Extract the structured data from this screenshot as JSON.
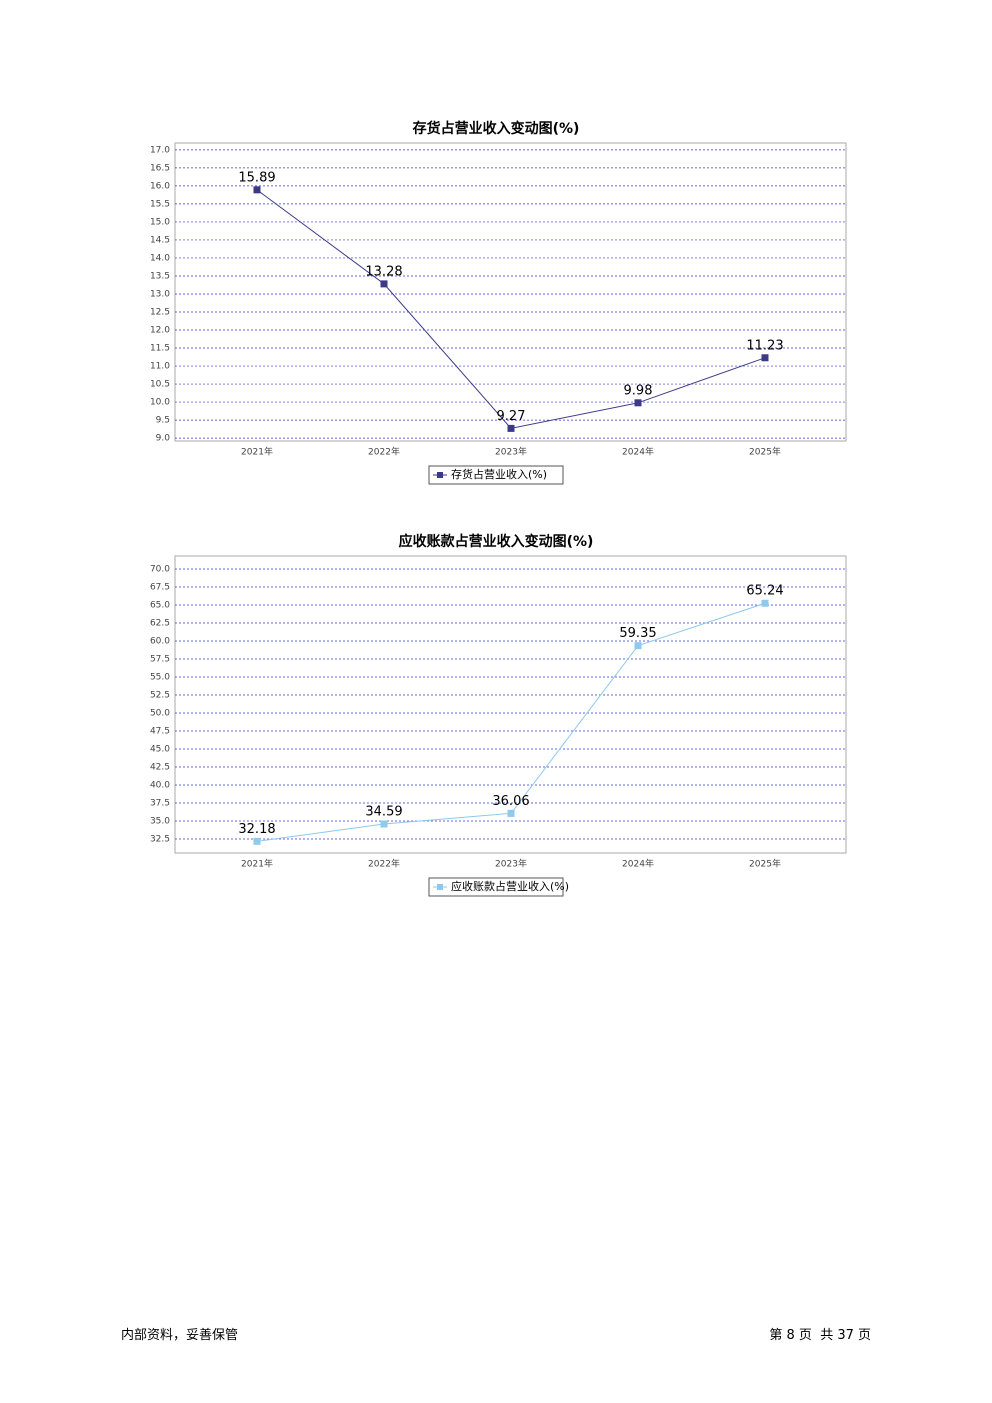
{
  "chart_data": [
    {
      "type": "line",
      "title": "存货占营业收入变动图(%)",
      "categories": [
        "2021年",
        "2022年",
        "2023年",
        "2024年",
        "2025年"
      ],
      "series": [
        {
          "name": "存货占营业收入(%)",
          "color": "#3d3a85",
          "values": [
            15.89,
            13.28,
            9.27,
            9.98,
            11.23
          ]
        }
      ],
      "ylim": [
        8.92,
        17.19
      ],
      "yticks": [
        {
          "value": 9,
          "label": "9.0"
        },
        9.5,
        {
          "value": 10,
          "label": "10.0"
        },
        10.5,
        {
          "value": 11,
          "label": "11.0"
        },
        11.5,
        {
          "value": 12,
          "label": "12.0"
        },
        12.5,
        {
          "value": 13,
          "label": "13.0"
        },
        13.5,
        {
          "value": 14,
          "label": "14.0"
        },
        14.5,
        {
          "value": 15,
          "label": "15.0"
        },
        15.5,
        {
          "value": 16,
          "label": "16.0"
        },
        16.5,
        {
          "value": 17,
          "label": "17.0"
        }
      ],
      "grid": true,
      "legend": "bottom"
    },
    {
      "type": "line",
      "title": "应收账款占营业收入变动图(%)",
      "categories": [
        "2021年",
        "2022年",
        "2023年",
        "2024年",
        "2025年"
      ],
      "series": [
        {
          "name": "应收账款占营业收入(%)",
          "color": "#8ec9ee",
          "values": [
            32.18,
            34.59,
            36.06,
            59.35,
            65.24
          ]
        }
      ],
      "ylim": [
        30.56,
        71.8
      ],
      "yticks": [
        32.5,
        {
          "value": 35,
          "label": "35.0"
        },
        37.5,
        {
          "value": 40,
          "label": "40.0"
        },
        42.5,
        {
          "value": 45,
          "label": "45.0"
        },
        47.5,
        {
          "value": 50,
          "label": "50.0"
        },
        52.5,
        {
          "value": 55,
          "label": "55.0"
        },
        57.5,
        {
          "value": 60,
          "label": "60.0"
        },
        62.5,
        {
          "value": 65,
          "label": "65.0"
        },
        67.5,
        {
          "value": 70,
          "label": "70.0"
        }
      ],
      "grid": true,
      "legend": "bottom"
    }
  ],
  "footer": {
    "left": "内部资料，妥善保管",
    "right": "第 8 页  共 37 页"
  }
}
